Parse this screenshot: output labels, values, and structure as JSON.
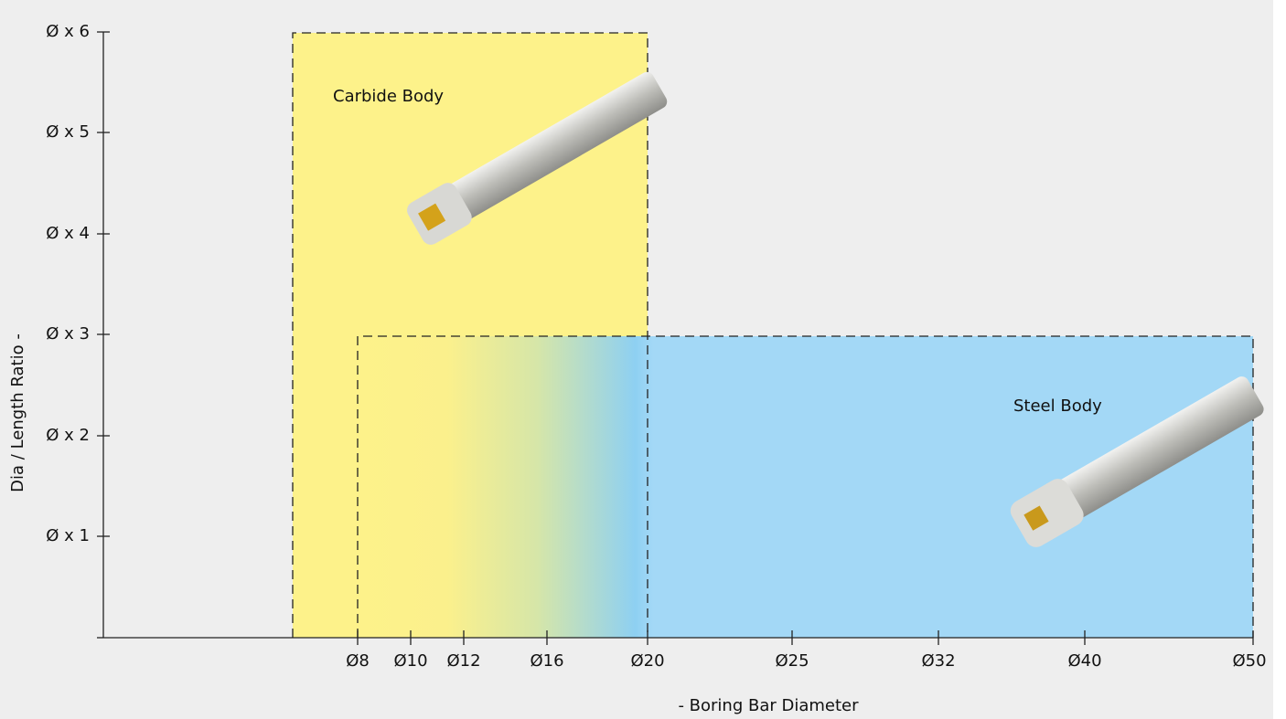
{
  "y_axis": {
    "label": "Dia / Length Ratio -",
    "ticks": [
      "Ø x 6",
      "Ø x 5",
      "Ø x 4",
      "Ø x 3",
      "Ø x 2",
      "Ø x 1"
    ]
  },
  "x_axis": {
    "label": "- Boring Bar Diameter",
    "ticks": [
      "Ø8",
      "Ø10",
      "Ø12",
      "Ø16",
      "Ø20",
      "Ø25",
      "Ø32",
      "Ø40",
      "Ø50"
    ]
  },
  "regions": [
    {
      "label": "Carbide Body"
    },
    {
      "label": "Steel Body"
    }
  ]
}
